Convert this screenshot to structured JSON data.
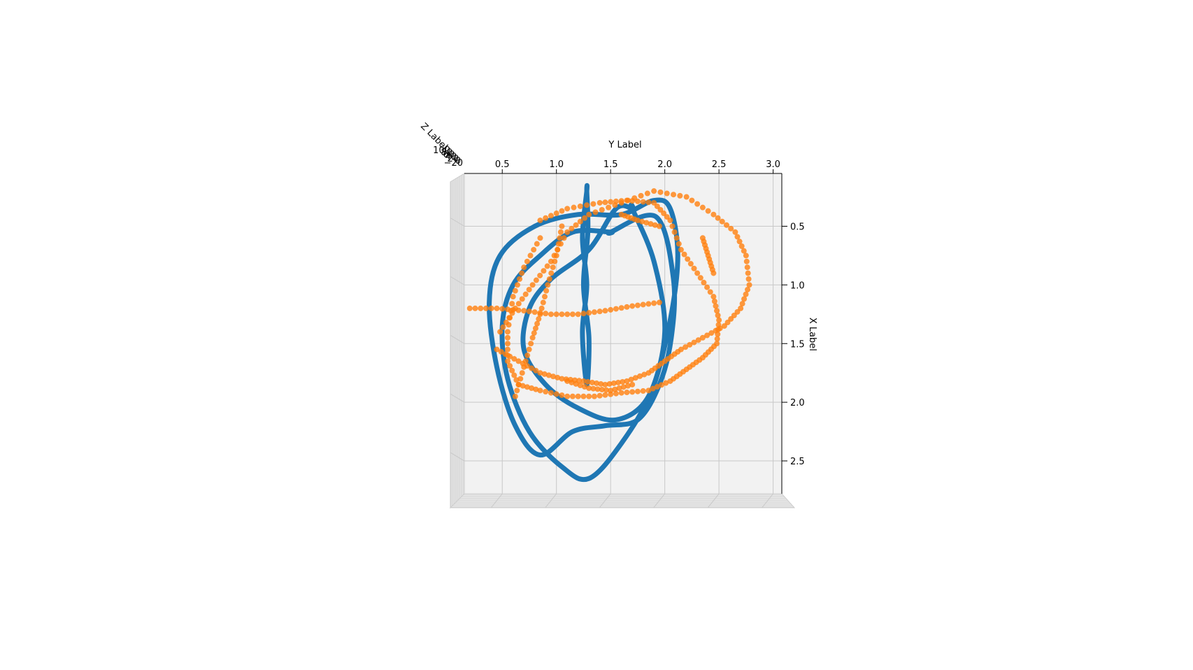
{
  "chart_data": {
    "type": "scatter",
    "projection": "3d-top-view",
    "xlabel": "X Label",
    "ylabel": "Y Label",
    "zlabel": "Z Label",
    "y_ticks": [
      "0.5",
      "1.0",
      "1.5",
      "2.0",
      "2.5",
      "3.0"
    ],
    "x_ticks": [
      "0.5",
      "1.0",
      "1.5",
      "2.0",
      "2.5"
    ],
    "z_ticks": [
      "−20",
      "0",
      "20",
      "40",
      "60",
      "80",
      "100"
    ],
    "ylim": [
      0.15,
      3.08
    ],
    "xlim": [
      0.05,
      2.78
    ],
    "grid": true,
    "series": [
      {
        "kind": "line",
        "color": "#1f77b4",
        "loops": [
          [
            [
              1.28,
              0.2
            ],
            [
              1.24,
              0.6
            ],
            [
              1.28,
              1.0
            ],
            [
              1.24,
              1.4
            ],
            [
              1.28,
              1.85
            ],
            [
              1.3,
              1.45
            ],
            [
              1.25,
              1.0
            ],
            [
              1.29,
              0.55
            ],
            [
              1.28,
              0.2
            ]
          ],
          [
            [
              1.5,
              0.55
            ],
            [
              1.92,
              0.42
            ],
            [
              2.08,
              0.95
            ],
            [
              2.06,
              1.45
            ],
            [
              1.95,
              1.85
            ],
            [
              1.75,
              2.15
            ],
            [
              1.45,
              2.2
            ],
            [
              1.15,
              2.25
            ],
            [
              0.85,
              2.45
            ],
            [
              0.62,
              2.2
            ],
            [
              0.45,
              1.7
            ],
            [
              0.38,
              1.15
            ],
            [
              0.48,
              0.75
            ],
            [
              0.8,
              0.5
            ],
            [
              1.2,
              0.4
            ],
            [
              1.6,
              0.4
            ],
            [
              1.9,
              0.28
            ],
            [
              2.05,
              0.35
            ],
            [
              2.12,
              0.75
            ],
            [
              2.05,
              1.3
            ],
            [
              1.88,
              1.9
            ],
            [
              1.6,
              2.35
            ],
            [
              1.3,
              2.65
            ],
            [
              1.05,
              2.55
            ],
            [
              0.75,
              2.25
            ],
            [
              0.55,
              1.8
            ],
            [
              0.5,
              1.35
            ],
            [
              0.6,
              1.0
            ],
            [
              0.85,
              0.75
            ],
            [
              1.15,
              0.55
            ],
            [
              1.5,
              0.55
            ]
          ],
          [
            [
              1.7,
              0.35
            ],
            [
              1.9,
              0.8
            ],
            [
              2.0,
              1.4
            ],
            [
              1.85,
              1.95
            ],
            [
              1.55,
              2.15
            ],
            [
              1.2,
              2.05
            ],
            [
              0.9,
              1.85
            ],
            [
              0.7,
              1.55
            ],
            [
              0.75,
              1.2
            ],
            [
              0.95,
              0.95
            ],
            [
              1.3,
              0.7
            ],
            [
              1.55,
              0.35
            ],
            [
              1.7,
              0.35
            ]
          ]
        ]
      },
      {
        "kind": "scatter",
        "color": "#ff7f0e",
        "paths": [
          [
            [
              0.48,
              1.4
            ],
            [
              0.62,
              1.2
            ],
            [
              0.78,
              1.0
            ],
            [
              0.95,
              0.8
            ],
            [
              1.1,
              0.55
            ],
            [
              1.3,
              0.4
            ],
            [
              1.6,
              0.3
            ],
            [
              1.9,
              0.2
            ],
            [
              2.2,
              0.25
            ],
            [
              2.45,
              0.4
            ],
            [
              2.65,
              0.55
            ],
            [
              2.75,
              0.75
            ],
            [
              2.78,
              1.0
            ],
            [
              2.7,
              1.2
            ],
            [
              2.55,
              1.35
            ],
            [
              2.35,
              1.45
            ],
            [
              2.15,
              1.55
            ],
            [
              2.0,
              1.65
            ],
            [
              1.85,
              1.75
            ],
            [
              1.65,
              1.82
            ],
            [
              1.45,
              1.85
            ],
            [
              1.25,
              1.82
            ],
            [
              1.05,
              1.8
            ],
            [
              0.85,
              1.75
            ],
            [
              0.65,
              1.65
            ],
            [
              0.45,
              1.55
            ]
          ],
          [
            [
              0.2,
              1.2
            ],
            [
              0.45,
              1.2
            ],
            [
              0.7,
              1.22
            ],
            [
              0.95,
              1.25
            ],
            [
              1.2,
              1.25
            ],
            [
              1.45,
              1.22
            ],
            [
              1.7,
              1.18
            ],
            [
              1.95,
              1.15
            ]
          ],
          [
            [
              0.85,
              0.45
            ],
            [
              1.1,
              0.35
            ],
            [
              1.4,
              0.3
            ],
            [
              1.65,
              0.28
            ],
            [
              1.9,
              0.3
            ],
            [
              2.05,
              0.45
            ],
            [
              2.15,
              0.7
            ],
            [
              2.3,
              0.9
            ],
            [
              2.45,
              1.1
            ],
            [
              2.5,
              1.3
            ],
            [
              2.48,
              1.5
            ],
            [
              2.35,
              1.62
            ],
            [
              2.2,
              1.72
            ],
            [
              2.05,
              1.82
            ],
            [
              1.85,
              1.9
            ],
            [
              1.6,
              1.92
            ],
            [
              1.35,
              1.95
            ],
            [
              1.1,
              1.95
            ],
            [
              0.85,
              1.9
            ],
            [
              0.65,
              1.85
            ],
            [
              0.55,
              1.65
            ],
            [
              0.55,
              1.4
            ],
            [
              0.6,
              1.1
            ],
            [
              0.7,
              0.85
            ],
            [
              0.85,
              0.6
            ]
          ],
          [
            [
              1.05,
              0.5
            ],
            [
              1.0,
              0.75
            ],
            [
              0.92,
              1.0
            ],
            [
              0.85,
              1.25
            ],
            [
              0.78,
              1.45
            ],
            [
              0.7,
              1.7
            ],
            [
              0.62,
              1.95
            ]
          ],
          [
            [
              1.6,
              0.4
            ],
            [
              1.75,
              0.45
            ],
            [
              1.95,
              0.5
            ]
          ],
          [
            [
              2.35,
              0.6
            ],
            [
              2.4,
              0.75
            ],
            [
              2.45,
              0.9
            ]
          ],
          [
            [
              1.1,
              1.82
            ],
            [
              1.3,
              1.88
            ],
            [
              1.5,
              1.9
            ],
            [
              1.7,
              1.85
            ]
          ]
        ]
      }
    ]
  }
}
